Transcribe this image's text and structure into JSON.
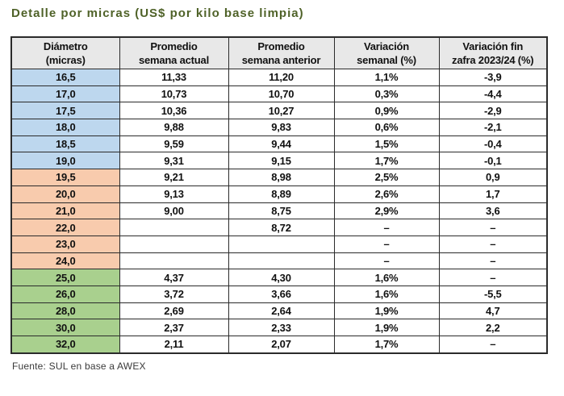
{
  "title": "Detalle por micras (US$ por kilo base limpia)",
  "source": "Fuente: SUL en base a AWEX",
  "colors": {
    "title": "#4F6228",
    "header_bg": "#E8E8E8",
    "group_fine_blue": "#BDD7EE",
    "group_medium_orange": "#F8CBAD",
    "group_coarse_green": "#A9D08E",
    "border": "#2b2b2b"
  },
  "table": {
    "headers": [
      "Diámetro\n(micras)",
      "Promedio\nsemana actual",
      "Promedio\nsemana anterior",
      "Variación\nsemanal (%)",
      "Variación fin\nzafra 2023/24 (%)"
    ],
    "rows": [
      {
        "diametro": "16,5",
        "actual": "11,33",
        "anterior": "11,20",
        "var_semanal": "1,1%",
        "var_zafra": "-3,9",
        "group": "fine"
      },
      {
        "diametro": "17,0",
        "actual": "10,73",
        "anterior": "10,70",
        "var_semanal": "0,3%",
        "var_zafra": "-4,4",
        "group": "fine"
      },
      {
        "diametro": "17,5",
        "actual": "10,36",
        "anterior": "10,27",
        "var_semanal": "0,9%",
        "var_zafra": "-2,9",
        "group": "fine"
      },
      {
        "diametro": "18,0",
        "actual": "9,88",
        "anterior": "9,83",
        "var_semanal": "0,6%",
        "var_zafra": "-2,1",
        "group": "fine"
      },
      {
        "diametro": "18,5",
        "actual": "9,59",
        "anterior": "9,44",
        "var_semanal": "1,5%",
        "var_zafra": "-0,4",
        "group": "fine"
      },
      {
        "diametro": "19,0",
        "actual": "9,31",
        "anterior": "9,15",
        "var_semanal": "1,7%",
        "var_zafra": "-0,1",
        "group": "fine"
      },
      {
        "diametro": "19,5",
        "actual": "9,21",
        "anterior": "8,98",
        "var_semanal": "2,5%",
        "var_zafra": "0,9",
        "group": "medium"
      },
      {
        "diametro": "20,0",
        "actual": "9,13",
        "anterior": "8,89",
        "var_semanal": "2,6%",
        "var_zafra": "1,7",
        "group": "medium"
      },
      {
        "diametro": "21,0",
        "actual": "9,00",
        "anterior": "8,75",
        "var_semanal": "2,9%",
        "var_zafra": "3,6",
        "group": "medium"
      },
      {
        "diametro": "22,0",
        "actual": "",
        "anterior": "8,72",
        "var_semanal": "–",
        "var_zafra": "–",
        "group": "medium"
      },
      {
        "diametro": "23,0",
        "actual": "",
        "anterior": "",
        "var_semanal": "–",
        "var_zafra": "–",
        "group": "medium"
      },
      {
        "diametro": "24,0",
        "actual": "",
        "anterior": "",
        "var_semanal": "–",
        "var_zafra": "–",
        "group": "medium"
      },
      {
        "diametro": "25,0",
        "actual": "4,37",
        "anterior": "4,30",
        "var_semanal": "1,6%",
        "var_zafra": "–",
        "group": "coarse"
      },
      {
        "diametro": "26,0",
        "actual": "3,72",
        "anterior": "3,66",
        "var_semanal": "1,6%",
        "var_zafra": "-5,5",
        "group": "coarse"
      },
      {
        "diametro": "28,0",
        "actual": "2,69",
        "anterior": "2,64",
        "var_semanal": "1,9%",
        "var_zafra": "4,7",
        "group": "coarse"
      },
      {
        "diametro": "30,0",
        "actual": "2,37",
        "anterior": "2,33",
        "var_semanal": "1,9%",
        "var_zafra": "2,2",
        "group": "coarse"
      },
      {
        "diametro": "32,0",
        "actual": "2,11",
        "anterior": "2,07",
        "var_semanal": "1,7%",
        "var_zafra": "–",
        "group": "coarse"
      }
    ]
  },
  "chart_data": {
    "type": "table",
    "title": "Detalle por micras (US$ por kilo base limpia)",
    "columns": [
      "Diámetro (micras)",
      "Promedio semana actual",
      "Promedio semana anterior",
      "Variación semanal (%)",
      "Variación fin zafra 2023/24 (%)"
    ],
    "categories": [
      "16,5",
      "17,0",
      "17,5",
      "18,0",
      "18,5",
      "19,0",
      "19,5",
      "20,0",
      "21,0",
      "22,0",
      "23,0",
      "24,0",
      "25,0",
      "26,0",
      "28,0",
      "30,0",
      "32,0"
    ],
    "series": [
      {
        "name": "Promedio semana actual",
        "values": [
          11.33,
          10.73,
          10.36,
          9.88,
          9.59,
          9.31,
          9.21,
          9.13,
          9.0,
          null,
          null,
          null,
          4.37,
          3.72,
          2.69,
          2.37,
          2.11
        ]
      },
      {
        "name": "Promedio semana anterior",
        "values": [
          11.2,
          10.7,
          10.27,
          9.83,
          9.44,
          9.15,
          8.98,
          8.89,
          8.75,
          8.72,
          null,
          null,
          4.3,
          3.66,
          2.64,
          2.33,
          2.07
        ]
      },
      {
        "name": "Variación semanal (%)",
        "values": [
          1.1,
          0.3,
          0.9,
          0.6,
          1.5,
          1.7,
          2.5,
          2.6,
          2.9,
          null,
          null,
          null,
          1.6,
          1.6,
          1.9,
          1.9,
          1.7
        ]
      },
      {
        "name": "Variación fin zafra 2023/24 (%)",
        "values": [
          -3.9,
          -4.4,
          -2.9,
          -2.1,
          -0.4,
          -0.1,
          0.9,
          1.7,
          3.6,
          null,
          null,
          null,
          null,
          -5.5,
          4.7,
          2.2,
          null
        ]
      }
    ],
    "source": "Fuente: SUL en base a AWEX"
  }
}
